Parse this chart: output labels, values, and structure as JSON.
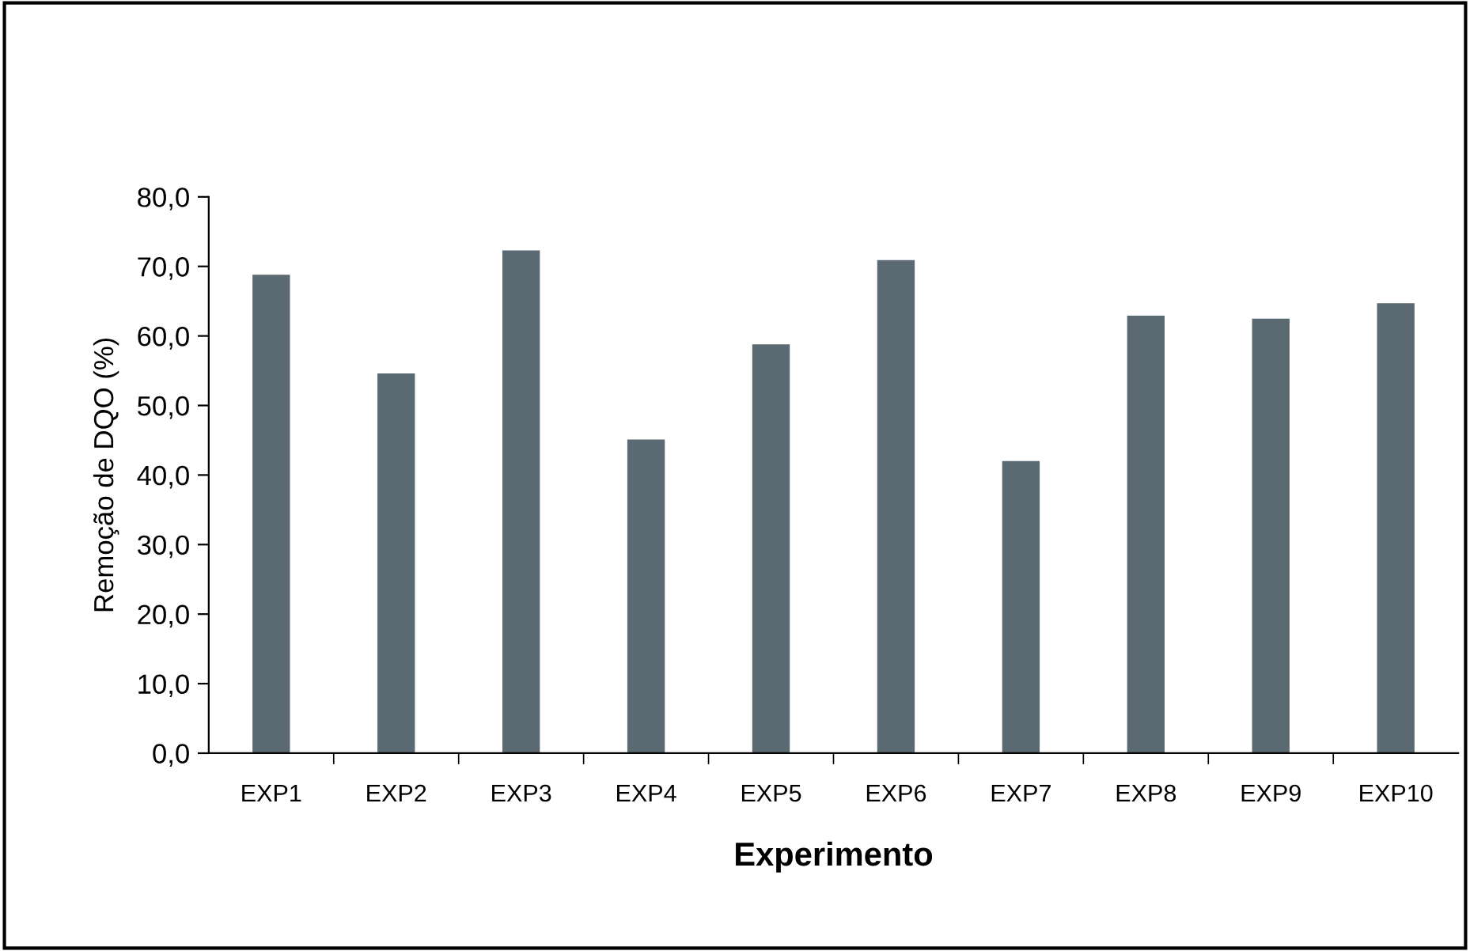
{
  "chart_data": {
    "type": "bar",
    "xlabel": "Experimento",
    "ylabel": "Remoção de DQO (%)",
    "categories": [
      "EXP1",
      "EXP2",
      "EXP3",
      "EXP4",
      "EXP5",
      "EXP6",
      "EXP7",
      "EXP8",
      "EXP9",
      "EXP10"
    ],
    "values": [
      68.8,
      54.6,
      72.3,
      45.1,
      58.8,
      70.9,
      42.0,
      62.9,
      62.5,
      64.7
    ],
    "color": "#5b6a72",
    "ylim": [
      0,
      80
    ],
    "yticks": [
      {
        "value": 0,
        "label": "0,0"
      },
      {
        "value": 10,
        "label": "10,0"
      },
      {
        "value": 20,
        "label": "20,0"
      },
      {
        "value": 30,
        "label": "30,0"
      },
      {
        "value": 40,
        "label": "40,0"
      },
      {
        "value": 50,
        "label": "50,0"
      },
      {
        "value": 60,
        "label": "60,0"
      },
      {
        "value": 70,
        "label": "70,0"
      },
      {
        "value": 80,
        "label": "80,0"
      }
    ],
    "grid": false
  }
}
